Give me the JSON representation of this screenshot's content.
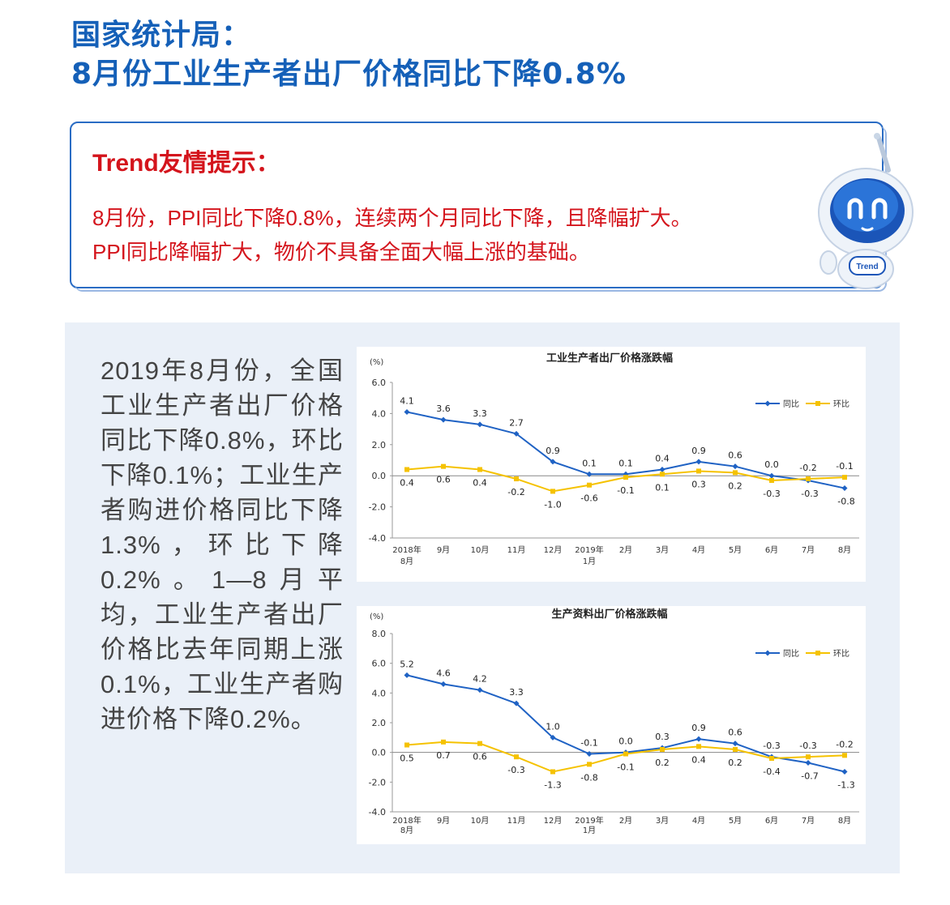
{
  "header": {
    "title_line1": "国家统计局：",
    "title_line2": "8月份工业生产者出厂价格同比下降0.8%"
  },
  "tip": {
    "heading": "Trend友情提示：",
    "line1": "8月份，PPI同比下降0.8%，连续两个月同比下降，且降幅扩大。",
    "line2": "PPI同比降幅扩大，物价不具备全面大幅上涨的基础。"
  },
  "mascot": {
    "badge": "Trend"
  },
  "summary": {
    "text": "2019年8月份，全国工业生产者出厂价格同比下降0.8%，环比下降0.1%；工业生产者购进价格同比下降1.3%，环比下降0.2%。1—8月平均，工业生产者出厂价格比去年同期上涨0.1%，工业生产者购进价格下降0.2%。"
  },
  "colors": {
    "yoy": "#1f62c4",
    "mom": "#f5c200",
    "title": "#1560b8",
    "tip": "#d4141c"
  },
  "chart_data": [
    {
      "type": "line",
      "title": "工业生产者出厂价格涨跌幅",
      "unit": "(%)",
      "categories": [
        "2018年8月",
        "9月",
        "10月",
        "11月",
        "12月",
        "2019年1月",
        "2月",
        "3月",
        "4月",
        "5月",
        "6月",
        "7月",
        "8月"
      ],
      "ylim": [
        -4.0,
        6.0
      ],
      "yticks": [
        "6.0",
        "4.0",
        "2.0",
        "0.0",
        "-2.0",
        "-4.0"
      ],
      "legend": "top-right",
      "series": [
        {
          "name": "同比",
          "color": "#1f62c4",
          "values": [
            4.1,
            3.6,
            3.3,
            2.7,
            0.9,
            0.1,
            0.1,
            0.4,
            0.9,
            0.6,
            0.0,
            -0.3,
            -0.8
          ],
          "labels": [
            "4.1",
            "3.6",
            "3.3",
            "2.7",
            "0.9",
            "0.1",
            "0.1",
            "0.4",
            "0.9",
            "0.6",
            "0.0",
            "-0.3",
            "-0.8"
          ]
        },
        {
          "name": "环比",
          "color": "#f5c200",
          "values": [
            0.4,
            0.6,
            0.4,
            -0.2,
            -1.0,
            -0.6,
            -0.1,
            0.1,
            0.3,
            0.2,
            -0.3,
            -0.2,
            -0.1
          ],
          "labels": [
            "0.4",
            "0.6",
            "0.4",
            "-0.2",
            "-1.0",
            "-0.6",
            "-0.1",
            "0.1",
            "0.3",
            "0.2",
            "-0.3",
            "-0.2",
            "-0.1"
          ]
        }
      ]
    },
    {
      "type": "line",
      "title": "生产资料出厂价格涨跌幅",
      "unit": "(%)",
      "categories": [
        "2018年8月",
        "9月",
        "10月",
        "11月",
        "12月",
        "2019年1月",
        "2月",
        "3月",
        "4月",
        "5月",
        "6月",
        "7月",
        "8月"
      ],
      "ylim": [
        -4.0,
        8.0
      ],
      "yticks": [
        "8.0",
        "6.0",
        "4.0",
        "2.0",
        "0.0",
        "-2.0",
        "-4.0"
      ],
      "legend": "top-right",
      "series": [
        {
          "name": "同比",
          "color": "#1f62c4",
          "values": [
            5.2,
            4.6,
            4.2,
            3.3,
            1.0,
            -0.1,
            0.0,
            0.3,
            0.9,
            0.6,
            -0.3,
            -0.7,
            -1.3
          ],
          "labels": [
            "5.2",
            "4.6",
            "4.2",
            "3.3",
            "1.0",
            "-0.1",
            "0.0",
            "0.3",
            "0.9",
            "0.6",
            "-0.3",
            "-0.7",
            "-1.3"
          ]
        },
        {
          "name": "环比",
          "color": "#f5c200",
          "values": [
            0.5,
            0.7,
            0.6,
            -0.3,
            -1.3,
            -0.8,
            -0.1,
            0.2,
            0.4,
            0.2,
            -0.4,
            -0.3,
            -0.2
          ],
          "labels": [
            "0.5",
            "0.7",
            "0.6",
            "-0.3",
            "-1.3",
            "-0.8",
            "-0.1",
            "0.2",
            "0.4",
            "0.2",
            "-0.4",
            "-0.3",
            "-0.2"
          ]
        }
      ]
    }
  ]
}
